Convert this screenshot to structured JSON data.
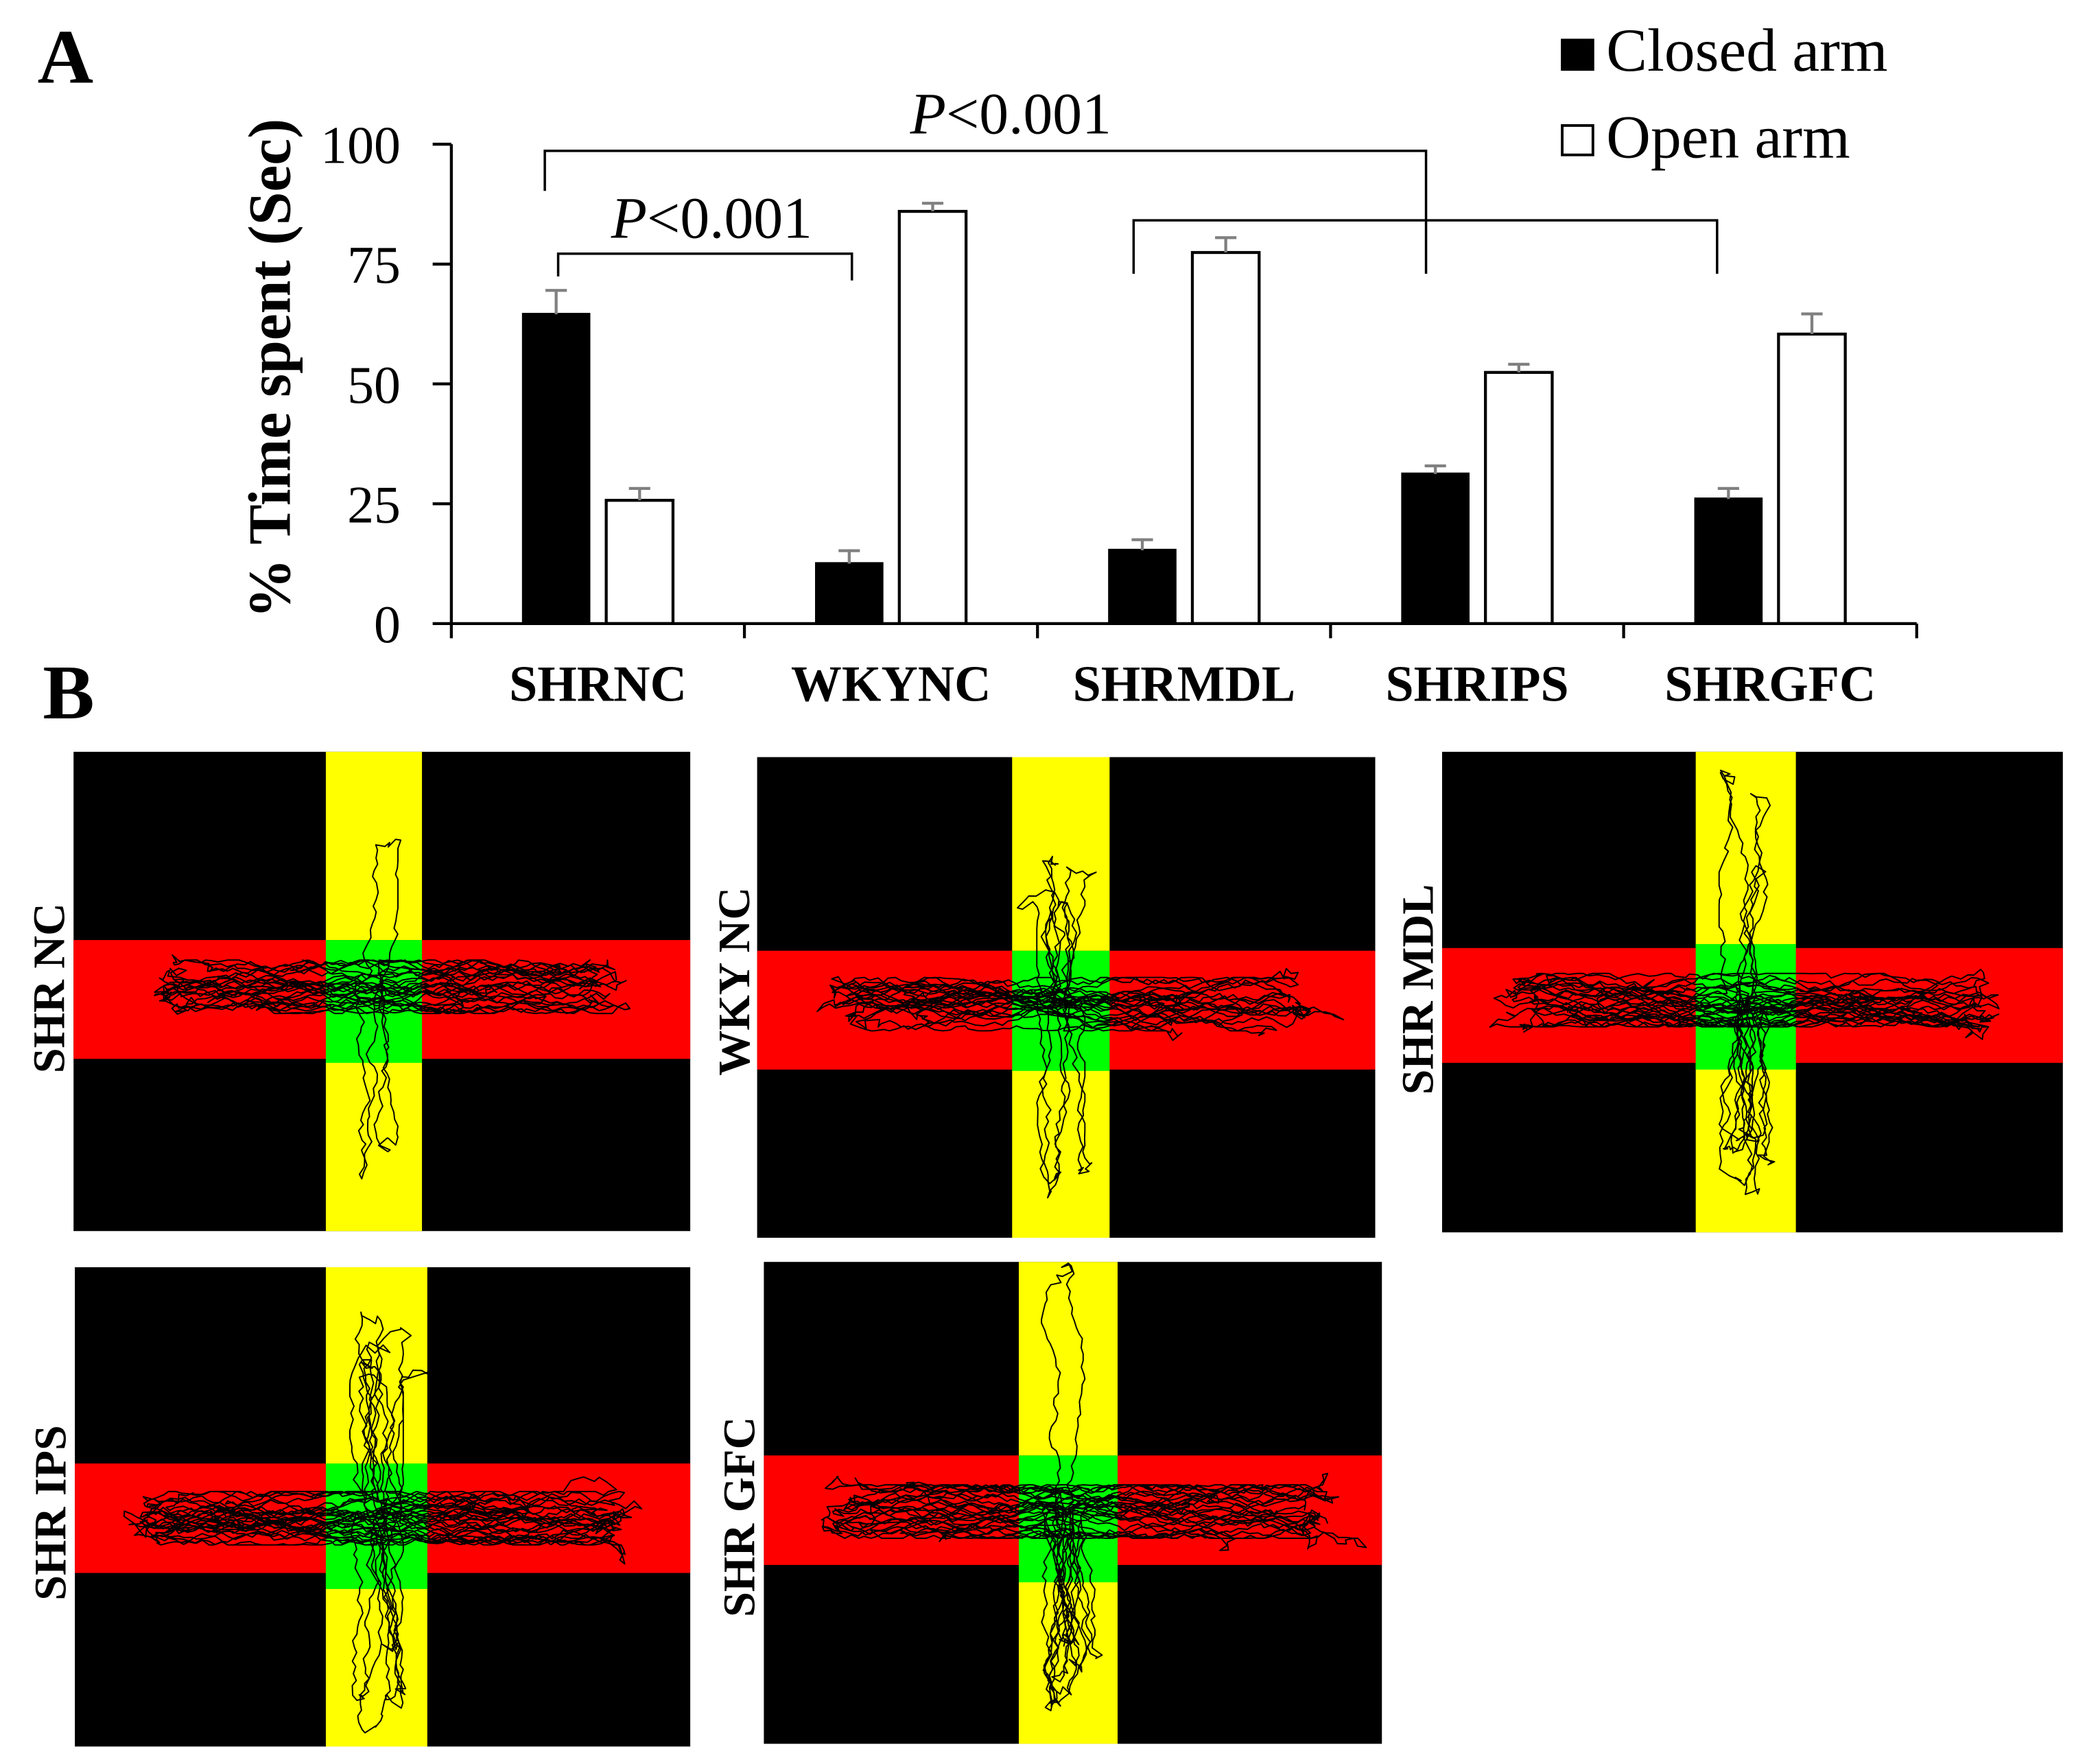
{
  "panels": {
    "a_label": "A",
    "b_label": "B"
  },
  "colors": {
    "background": "#000000",
    "vertical_arm": "#ffff00",
    "horizontal_arm": "#ff0000",
    "center_zone": "#00ff00",
    "track": "#000000",
    "error_bar": "#808080",
    "axis": "#000000"
  },
  "chart_data": {
    "type": "bar",
    "title": "",
    "xlabel": "",
    "ylabel": "% Time spent (Sec)",
    "ylim": [
      0,
      100
    ],
    "yticks": [
      0,
      25,
      50,
      75,
      100
    ],
    "grid": false,
    "legend": "top-right",
    "categories": [
      "SHRNC",
      "WKYNC",
      "SHRMDL",
      "SHRIPS",
      "SHRGFC"
    ],
    "series": [
      {
        "name": "Closed arm",
        "fill": "#000000",
        "values": [
          64.5,
          12.5,
          15.3,
          31.2,
          26.0
        ],
        "errors": [
          5.0,
          2.7,
          2.2,
          1.7,
          2.2
        ]
      },
      {
        "name": "Open arm",
        "fill": "#ffffff",
        "values": [
          25.7,
          86.0,
          77.4,
          52.4,
          60.4
        ],
        "errors": [
          2.5,
          1.7,
          3.1,
          1.7,
          4.2
        ]
      }
    ],
    "annotations": [
      {
        "text": "P<0.001",
        "between": [
          "SHRNC",
          "WKYNC"
        ]
      },
      {
        "text": "P<0.001",
        "between": [
          "SHRNC",
          "SHRMDL",
          "SHRIPS",
          "SHRGFC"
        ]
      }
    ]
  },
  "mazes": [
    {
      "label": "SHR NC"
    },
    {
      "label": "WKY NC"
    },
    {
      "label": "SHR MDL"
    },
    {
      "label": "SHR IPS"
    },
    {
      "label": "SHR GFC"
    }
  ]
}
